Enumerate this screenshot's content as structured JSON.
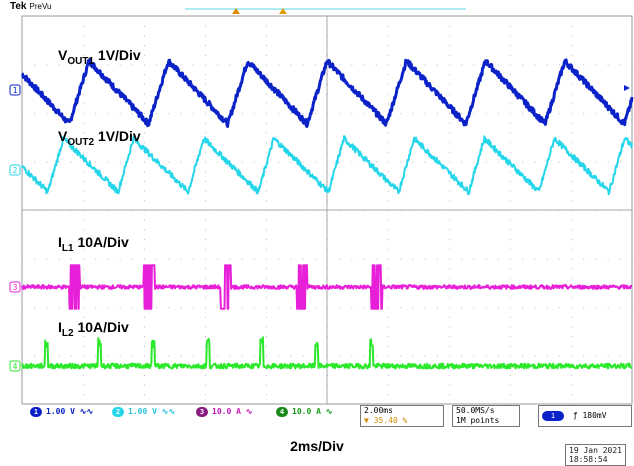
{
  "header": {
    "brand": "Tek",
    "mode": "PreVu"
  },
  "chart_data": {
    "type": "line",
    "title": "",
    "xlabel": "2ms/Div",
    "time_div_ms": 2,
    "divisions": 10,
    "series": [
      {
        "name": "VOUT1",
        "channel": "1",
        "color": "#0a22c8",
        "label_main": "V",
        "label_sub": "OUT1",
        "label_tail": " 1V/Div",
        "shape": "sawtooth_fall_ramp",
        "period_ms": 2.6,
        "high_div": 0.6,
        "low_div": -0.7,
        "phase_ms": 1.55
      },
      {
        "name": "VOUT2",
        "channel": "2",
        "color": "#25d6ea",
        "label_main": "V",
        "label_sub": "OUT2",
        "label_tail": " 1V/Div",
        "shape": "sawtooth_rise_fall",
        "period_ms": 2.3,
        "high_div": 0.65,
        "low_div": -0.45,
        "phase_ms": 0.85
      },
      {
        "name": "IL1",
        "channel": "3",
        "color": "#e81fd8",
        "label_main": "I",
        "label_sub": "L1",
        "label_tail": " 10A/Div",
        "shape": "pulse_train",
        "pulse_starts_ms": [
          1.55,
          4.0,
          6.5,
          9.0,
          11.45
        ],
        "pulse_width_ms": 0.35,
        "pulse_height_div": 0.9
      },
      {
        "name": "IL2",
        "channel": "4",
        "color": "#2ce82a",
        "label_main": "I",
        "label_sub": "L2",
        "label_tail": " 10A/Div",
        "shape": "spike_train",
        "spike_times_ms": [
          0.8,
          2.55,
          4.3,
          6.1,
          7.85,
          9.65,
          11.45
        ],
        "spike_height_div": 0.6
      }
    ]
  },
  "statusbar": {
    "ch1": {
      "num": "1",
      "text": "1.00 V",
      "coupling": "∿∿"
    },
    "ch2": {
      "num": "2",
      "text": "1.00 V",
      "coupling": "∿∿"
    },
    "ch3": {
      "num": "3",
      "text": "10.0 A",
      "coupling": "∿"
    },
    "ch4": {
      "num": "4",
      "text": "10.0 A",
      "coupling": "∿"
    },
    "timebase": "2.00ms",
    "trigger_pos": "35.40 %",
    "samplerate": "50.0MS/s",
    "points": "1M points",
    "trig_ch": "1",
    "trig_slope": "ƒ",
    "trig_level": "180mV"
  },
  "date": {
    "day": "19 Jan  2021",
    "time": "18:58:54"
  }
}
